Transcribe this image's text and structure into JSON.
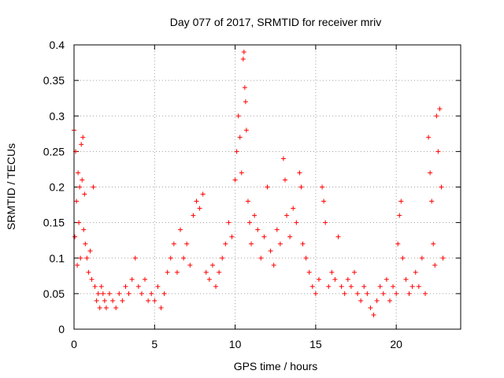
{
  "chart_data": {
    "type": "scatter",
    "title": "Day 077 of 2017, SRMTID for receiver mriv",
    "xlabel": "GPS time / hours",
    "ylabel": "SRMTID / TECUs",
    "xlim": [
      0,
      24
    ],
    "ylim": [
      0,
      0.4
    ],
    "grid": true,
    "grid_style": "dotted",
    "marker": "+",
    "x_ticks": [
      0,
      5,
      10,
      15,
      20
    ],
    "x_tick_labels": [
      "0",
      "5",
      "10",
      "15",
      "20"
    ],
    "y_ticks": [
      0,
      0.05,
      0.1,
      0.15,
      0.2,
      0.25,
      0.3,
      0.35,
      0.4
    ],
    "y_tick_labels": [
      "0",
      "0.05",
      "0.1",
      "0.15",
      "0.2",
      "0.25",
      "0.3",
      "0.35",
      "0.4"
    ],
    "series": [
      {
        "name": "SRMTID",
        "color": "#ff0000",
        "points": [
          [
            0.0,
            0.28
          ],
          [
            0.05,
            0.13
          ],
          [
            0.1,
            0.25
          ],
          [
            0.15,
            0.18
          ],
          [
            0.2,
            0.09
          ],
          [
            0.25,
            0.22
          ],
          [
            0.3,
            0.15
          ],
          [
            0.35,
            0.2
          ],
          [
            0.4,
            0.1
          ],
          [
            0.45,
            0.26
          ],
          [
            0.5,
            0.21
          ],
          [
            0.55,
            0.27
          ],
          [
            0.6,
            0.14
          ],
          [
            0.65,
            0.19
          ],
          [
            0.7,
            0.12
          ],
          [
            0.8,
            0.1
          ],
          [
            0.9,
            0.08
          ],
          [
            1.0,
            0.11
          ],
          [
            1.1,
            0.07
          ],
          [
            1.2,
            0.2
          ],
          [
            1.3,
            0.06
          ],
          [
            1.4,
            0.04
          ],
          [
            1.5,
            0.05
          ],
          [
            1.6,
            0.03
          ],
          [
            1.7,
            0.06
          ],
          [
            1.8,
            0.05
          ],
          [
            1.9,
            0.04
          ],
          [
            2.0,
            0.03
          ],
          [
            2.2,
            0.05
          ],
          [
            2.4,
            0.04
          ],
          [
            2.6,
            0.03
          ],
          [
            2.8,
            0.05
          ],
          [
            3.0,
            0.04
          ],
          [
            3.2,
            0.06
          ],
          [
            3.4,
            0.05
          ],
          [
            3.6,
            0.07
          ],
          [
            3.8,
            0.1
          ],
          [
            4.0,
            0.06
          ],
          [
            4.2,
            0.05
          ],
          [
            4.4,
            0.07
          ],
          [
            4.6,
            0.04
          ],
          [
            4.8,
            0.05
          ],
          [
            5.0,
            0.04
          ],
          [
            5.2,
            0.06
          ],
          [
            5.4,
            0.03
          ],
          [
            5.6,
            0.05
          ],
          [
            5.8,
            0.08
          ],
          [
            6.0,
            0.1
          ],
          [
            6.2,
            0.12
          ],
          [
            6.4,
            0.08
          ],
          [
            6.6,
            0.14
          ],
          [
            6.8,
            0.1
          ],
          [
            7.0,
            0.12
          ],
          [
            7.2,
            0.09
          ],
          [
            7.4,
            0.16
          ],
          [
            7.6,
            0.18
          ],
          [
            7.8,
            0.17
          ],
          [
            8.0,
            0.19
          ],
          [
            8.2,
            0.08
          ],
          [
            8.4,
            0.07
          ],
          [
            8.6,
            0.09
          ],
          [
            8.8,
            0.06
          ],
          [
            9.0,
            0.08
          ],
          [
            9.2,
            0.1
          ],
          [
            9.4,
            0.12
          ],
          [
            9.6,
            0.15
          ],
          [
            9.8,
            0.13
          ],
          [
            10.0,
            0.21
          ],
          [
            10.1,
            0.25
          ],
          [
            10.2,
            0.3
          ],
          [
            10.3,
            0.27
          ],
          [
            10.4,
            0.22
          ],
          [
            10.5,
            0.38
          ],
          [
            10.55,
            0.39
          ],
          [
            10.6,
            0.34
          ],
          [
            10.65,
            0.32
          ],
          [
            10.7,
            0.28
          ],
          [
            10.8,
            0.18
          ],
          [
            10.9,
            0.15
          ],
          [
            11.0,
            0.12
          ],
          [
            11.2,
            0.16
          ],
          [
            11.4,
            0.14
          ],
          [
            11.6,
            0.1
          ],
          [
            11.8,
            0.13
          ],
          [
            12.0,
            0.2
          ],
          [
            12.2,
            0.11
          ],
          [
            12.4,
            0.09
          ],
          [
            12.6,
            0.14
          ],
          [
            12.8,
            0.12
          ],
          [
            13.0,
            0.24
          ],
          [
            13.1,
            0.21
          ],
          [
            13.2,
            0.16
          ],
          [
            13.4,
            0.13
          ],
          [
            13.6,
            0.17
          ],
          [
            13.8,
            0.15
          ],
          [
            14.0,
            0.22
          ],
          [
            14.1,
            0.2
          ],
          [
            14.2,
            0.12
          ],
          [
            14.4,
            0.1
          ],
          [
            14.6,
            0.08
          ],
          [
            14.8,
            0.06
          ],
          [
            15.0,
            0.05
          ],
          [
            15.2,
            0.07
          ],
          [
            15.4,
            0.2
          ],
          [
            15.5,
            0.18
          ],
          [
            15.6,
            0.15
          ],
          [
            15.8,
            0.06
          ],
          [
            16.0,
            0.08
          ],
          [
            16.2,
            0.07
          ],
          [
            16.4,
            0.13
          ],
          [
            16.6,
            0.06
          ],
          [
            16.8,
            0.05
          ],
          [
            17.0,
            0.07
          ],
          [
            17.2,
            0.06
          ],
          [
            17.4,
            0.08
          ],
          [
            17.6,
            0.05
          ],
          [
            17.8,
            0.04
          ],
          [
            18.0,
            0.06
          ],
          [
            18.2,
            0.05
          ],
          [
            18.4,
            0.03
          ],
          [
            18.6,
            0.02
          ],
          [
            18.8,
            0.04
          ],
          [
            19.0,
            0.06
          ],
          [
            19.2,
            0.05
          ],
          [
            19.4,
            0.07
          ],
          [
            19.6,
            0.04
          ],
          [
            19.8,
            0.06
          ],
          [
            20.0,
            0.05
          ],
          [
            20.1,
            0.12
          ],
          [
            20.2,
            0.16
          ],
          [
            20.3,
            0.18
          ],
          [
            20.4,
            0.1
          ],
          [
            20.6,
            0.07
          ],
          [
            20.8,
            0.05
          ],
          [
            21.0,
            0.06
          ],
          [
            21.2,
            0.08
          ],
          [
            21.4,
            0.06
          ],
          [
            21.6,
            0.1
          ],
          [
            21.8,
            0.05
          ],
          [
            22.0,
            0.27
          ],
          [
            22.1,
            0.22
          ],
          [
            22.2,
            0.18
          ],
          [
            22.3,
            0.12
          ],
          [
            22.4,
            0.09
          ],
          [
            22.5,
            0.3
          ],
          [
            22.6,
            0.25
          ],
          [
            22.7,
            0.31
          ],
          [
            22.8,
            0.2
          ],
          [
            22.9,
            0.1
          ]
        ]
      }
    ]
  }
}
